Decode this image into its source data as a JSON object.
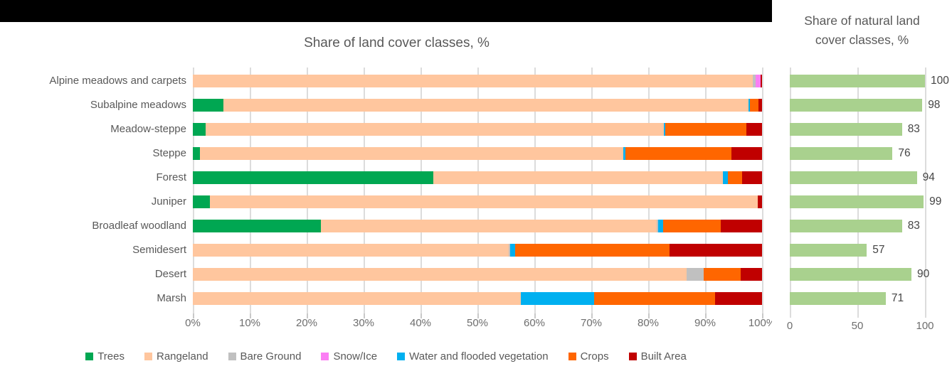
{
  "main_chart": {
    "title": "Share of land cover classes, %",
    "x_ticks": [
      "0%",
      "10%",
      "20%",
      "30%",
      "40%",
      "50%",
      "60%",
      "70%",
      "80%",
      "90%",
      "100%"
    ],
    "categories": [
      "Alpine meadows and carpets",
      "Subalpine meadows",
      "Meadow-steppe",
      "Steppe",
      "Forest",
      "Juniper",
      "Broadleaf woodland",
      "Semidesert",
      "Desert",
      "Marsh"
    ],
    "legend": [
      {
        "label": "Trees",
        "color": "#00A752"
      },
      {
        "label": "Rangeland",
        "color": "#FFC69E"
      },
      {
        "label": "Bare Ground",
        "color": "#C0C0C0"
      },
      {
        "label": "Snow/Ice",
        "color": "#FB7EF4"
      },
      {
        "label": "Water and flooded vegetation",
        "color": "#00B0F0"
      },
      {
        "label": "Crops",
        "color": "#FF6600"
      },
      {
        "label": "Built Area",
        "color": "#C00000"
      }
    ],
    "chart_data": {
      "type": "bar",
      "orientation": "horizontal-stacked",
      "title": "Share of land cover classes, %",
      "xlim": [
        0,
        100
      ],
      "grid": true,
      "legend_position": "bottom",
      "categories": [
        "Alpine meadows and carpets",
        "Subalpine meadows",
        "Meadow-steppe",
        "Steppe",
        "Forest",
        "Juniper",
        "Broadleaf woodland",
        "Semidesert",
        "Desert",
        "Marsh"
      ],
      "series": [
        {
          "name": "Trees",
          "color": "#00A752",
          "values": [
            0,
            5.4,
            2.3,
            1.3,
            42.3,
            3.0,
            22.5,
            0,
            0,
            0
          ]
        },
        {
          "name": "Rangeland",
          "color": "#FFC69E",
          "values": [
            98.4,
            92.2,
            80.4,
            74.3,
            50.8,
            96.2,
            59.0,
            55.5,
            86.8,
            57.6
          ]
        },
        {
          "name": "Bare Ground",
          "color": "#C0C0C0",
          "values": [
            0.5,
            0,
            0,
            0,
            0,
            0,
            0.3,
            0.3,
            2.9,
            0
          ]
        },
        {
          "name": "Snow/Ice",
          "color": "#FB7EF4",
          "values": [
            0.8,
            0,
            0,
            0,
            0,
            0,
            0,
            0,
            0,
            0
          ]
        },
        {
          "name": "Water and flooded vegetation",
          "color": "#00B0F0",
          "values": [
            0,
            0.3,
            0.3,
            0.4,
            0.9,
            0,
            0.8,
            0.8,
            0,
            12.9
          ]
        },
        {
          "name": "Crops",
          "color": "#FF6600",
          "values": [
            0,
            1.5,
            14.2,
            18.6,
            2.5,
            0,
            10.2,
            27.2,
            6.6,
            21.2
          ]
        },
        {
          "name": "Built Area",
          "color": "#C00000",
          "values": [
            0.3,
            0.6,
            2.8,
            5.4,
            3.5,
            0.8,
            7.2,
            16.2,
            3.7,
            8.3
          ]
        }
      ]
    }
  },
  "right_chart": {
    "title_line1": "Share of natural land",
    "title_line2": "cover classes, %",
    "x_ticks": [
      "0",
      "50",
      "100"
    ],
    "bar_color": "#A9D18E",
    "chart_data": {
      "type": "bar",
      "orientation": "horizontal",
      "title": "Share of natural land cover classes, %",
      "xlim": [
        0,
        100
      ],
      "grid": true,
      "categories": [
        "Alpine meadows and carpets",
        "Subalpine meadows",
        "Meadow-steppe",
        "Steppe",
        "Forest",
        "Juniper",
        "Broadleaf woodland",
        "Semidesert",
        "Desert",
        "Marsh"
      ],
      "values": [
        100,
        98,
        83,
        76,
        94,
        99,
        83,
        57,
        90,
        71
      ]
    }
  }
}
